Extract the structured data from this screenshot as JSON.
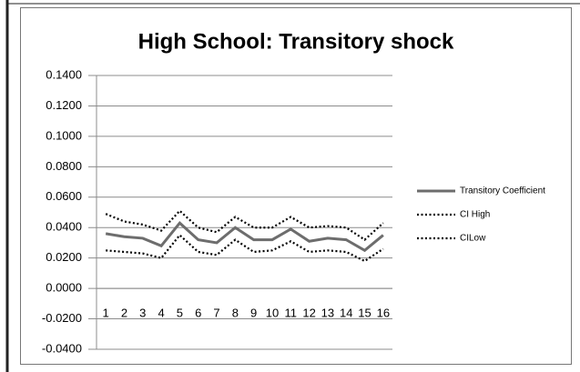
{
  "chart_data": {
    "type": "line",
    "title": "High School: Transitory shock",
    "categories": [
      "1",
      "2",
      "3",
      "4",
      "5",
      "6",
      "7",
      "8",
      "9",
      "10",
      "11",
      "12",
      "13",
      "14",
      "15",
      "16"
    ],
    "series": [
      {
        "name": "Transitory Coefficient",
        "color": "#6d6d6d",
        "style": "solid",
        "values": [
          0.036,
          0.034,
          0.033,
          0.028,
          0.043,
          0.032,
          0.03,
          0.04,
          0.032,
          0.032,
          0.039,
          0.031,
          0.033,
          0.032,
          0.025,
          0.035
        ]
      },
      {
        "name": "CI High",
        "color": "#000000",
        "style": "dotted",
        "values": [
          0.049,
          0.044,
          0.042,
          0.038,
          0.051,
          0.04,
          0.037,
          0.047,
          0.04,
          0.04,
          0.047,
          0.04,
          0.041,
          0.04,
          0.032,
          0.043
        ]
      },
      {
        "name": "CILow",
        "color": "#000000",
        "style": "dotted",
        "values": [
          0.025,
          0.024,
          0.023,
          0.02,
          0.035,
          0.024,
          0.022,
          0.032,
          0.024,
          0.025,
          0.031,
          0.024,
          0.025,
          0.024,
          0.018,
          0.026
        ]
      }
    ],
    "ylim": [
      -0.04,
      0.14
    ],
    "yticks": [
      {
        "value": -0.04,
        "label": "-0.0400"
      },
      {
        "value": -0.02,
        "label": "-0.0200"
      },
      {
        "value": 0,
        "label": "0.0000"
      },
      {
        "value": 0.02,
        "label": "0.0200"
      },
      {
        "value": 0.04,
        "label": "0.0400"
      },
      {
        "value": 0.06,
        "label": "0.0600"
      },
      {
        "value": 0.08,
        "label": "0.0800"
      },
      {
        "value": 0.1,
        "label": "0.1000"
      },
      {
        "value": 0.12,
        "label": "0.1200"
      },
      {
        "value": 0.14,
        "label": "0.1400"
      }
    ],
    "grid": true,
    "legend": "right"
  }
}
